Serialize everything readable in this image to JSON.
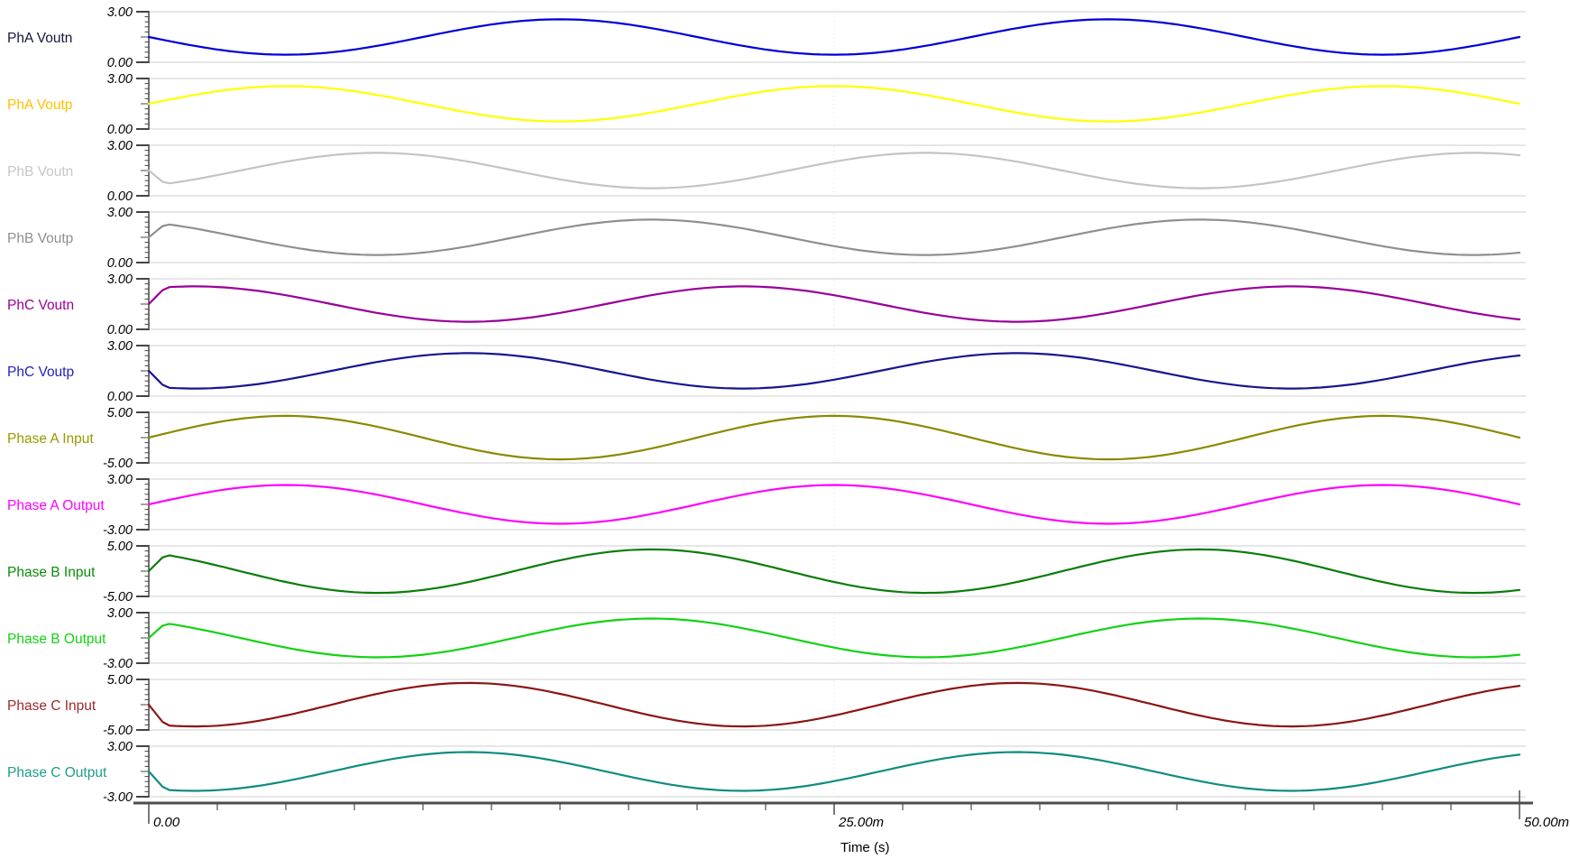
{
  "figure": {
    "background": "#ffffff",
    "axis_color": "#4d4d4d",
    "grid_color": "#cdcdcd",
    "tick_color": "#444444",
    "minor_grid_color": "#e6e6e6"
  },
  "chart_data": {
    "type": "line",
    "title": "",
    "xlabel": "Time (s)",
    "x_range_ms": [
      0,
      50
    ],
    "period_ms": 20,
    "ramp_ms": 0.6,
    "x_major_ticks": [
      {
        "t_ms": 0,
        "label": "0.00"
      },
      {
        "t_ms": 25,
        "label": "25.00m"
      },
      {
        "t_ms": 50,
        "label": "50.00m"
      }
    ],
    "x_minor_step_ms": 2.5,
    "panels": [
      {
        "id": "pha-voutn",
        "label": "PhA Voutn",
        "label_color": "#15153d",
        "color": "#0000d8",
        "ylim": [
          0,
          3
        ],
        "ytick_top": "3.00",
        "ytick_bottom": "0.00",
        "offset": 1.5,
        "amplitude": 1.05,
        "phase_deg": 180
      },
      {
        "id": "pha-voutp",
        "label": "PhA Voutp",
        "label_color": "#ffc000",
        "color": "#ffff00",
        "ylim": [
          0,
          3
        ],
        "ytick_top": "3.00",
        "ytick_bottom": "0.00",
        "offset": 1.5,
        "amplitude": 1.05,
        "phase_deg": 0
      },
      {
        "id": "phb-voutn",
        "label": "PhB Voutn",
        "label_color": "#c8c8c8",
        "color": "#c4c4c4",
        "ylim": [
          0,
          3
        ],
        "ytick_top": "3.00",
        "ytick_bottom": "0.00",
        "offset": 1.5,
        "amplitude": 1.05,
        "phase_deg": -60
      },
      {
        "id": "phb-voutp",
        "label": "PhB Voutp",
        "label_color": "#8f8f8f",
        "color": "#8f8f8f",
        "ylim": [
          0,
          3
        ],
        "ytick_top": "3.00",
        "ytick_bottom": "0.00",
        "offset": 1.5,
        "amplitude": 1.05,
        "phase_deg": 120
      },
      {
        "id": "phc-voutn",
        "label": "PhC Voutn",
        "label_color": "#990099",
        "color": "#990099",
        "ylim": [
          0,
          3
        ],
        "ytick_top": "3.00",
        "ytick_bottom": "0.00",
        "offset": 1.5,
        "amplitude": 1.05,
        "phase_deg": 60
      },
      {
        "id": "phc-voutp",
        "label": "PhC Voutp",
        "label_color": "#2222bb",
        "color": "#16168f",
        "ylim": [
          0,
          3
        ],
        "ytick_top": "3.00",
        "ytick_bottom": "0.00",
        "offset": 1.5,
        "amplitude": 1.05,
        "phase_deg": -120
      },
      {
        "id": "phase-a-input",
        "label": "Phase A Input",
        "label_color": "#9a9a00",
        "color": "#8a8a00",
        "ylim": [
          -5,
          5
        ],
        "ytick_top": "5.00",
        "ytick_bottom": "-5.00",
        "offset": 0,
        "amplitude": 4.3,
        "phase_deg": 0
      },
      {
        "id": "phase-a-output",
        "label": "Phase A Output",
        "label_color": "#ff00ff",
        "color": "#ff00ff",
        "ylim": [
          -3,
          3
        ],
        "ytick_top": "3.00",
        "ytick_bottom": "-3.00",
        "offset": 0,
        "amplitude": 2.3,
        "phase_deg": 0
      },
      {
        "id": "phase-b-input",
        "label": "Phase B Input",
        "label_color": "#0a8c0a",
        "color": "#0a7d0a",
        "ylim": [
          -5,
          5
        ],
        "ytick_top": "5.00",
        "ytick_bottom": "-5.00",
        "offset": 0,
        "amplitude": 4.3,
        "phase_deg": 120
      },
      {
        "id": "phase-b-output",
        "label": "Phase B Output",
        "label_color": "#12d212",
        "color": "#12d212",
        "ylim": [
          -3,
          3
        ],
        "ytick_top": "3.00",
        "ytick_bottom": "-3.00",
        "offset": 0,
        "amplitude": 2.3,
        "phase_deg": 120
      },
      {
        "id": "phase-c-input",
        "label": "Phase C Input",
        "label_color": "#9c2a2a",
        "color": "#8c1515",
        "ylim": [
          -5,
          5
        ],
        "ytick_top": "5.00",
        "ytick_bottom": "-5.00",
        "offset": 0,
        "amplitude": 4.3,
        "phase_deg": -120
      },
      {
        "id": "phase-c-output",
        "label": "Phase C Output",
        "label_color": "#1d9c8c",
        "color": "#0e8c80",
        "ylim": [
          -3,
          3
        ],
        "ytick_top": "3.00",
        "ytick_bottom": "-3.00",
        "offset": 0,
        "amplitude": 2.3,
        "phase_deg": -120
      }
    ]
  }
}
